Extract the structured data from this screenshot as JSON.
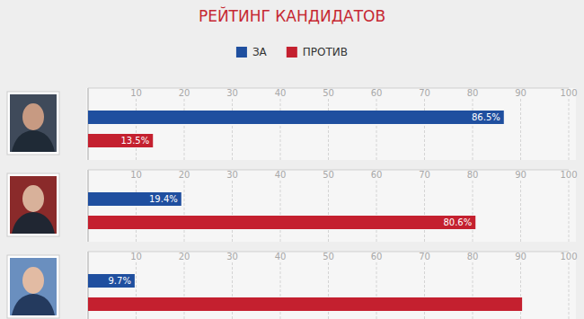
{
  "chart_data": {
    "type": "bar",
    "title": "РЕЙТИНГ КАНДИДАТОВ",
    "orientation": "horizontal",
    "categories": [
      null,
      null,
      null
    ],
    "series": [
      {
        "name": "ЗА",
        "color": "#1f4f9f",
        "values": [
          86.5,
          19.4,
          9.7
        ],
        "value_labels": [
          "86.5%",
          "19.4%",
          "9.7%"
        ]
      },
      {
        "name": "ПРОТИВ",
        "color": "#c4202f",
        "values": [
          13.5,
          80.6,
          90.3
        ],
        "value_labels": [
          "13.5%",
          "80.6%",
          null
        ]
      }
    ],
    "xlim": [
      0,
      100
    ],
    "xticks": [
      10,
      20,
      30,
      40,
      50,
      60,
      70,
      80,
      90,
      100
    ],
    "grid": true,
    "legend": "top",
    "data_labels": true,
    "tick_labels": "x"
  }
}
